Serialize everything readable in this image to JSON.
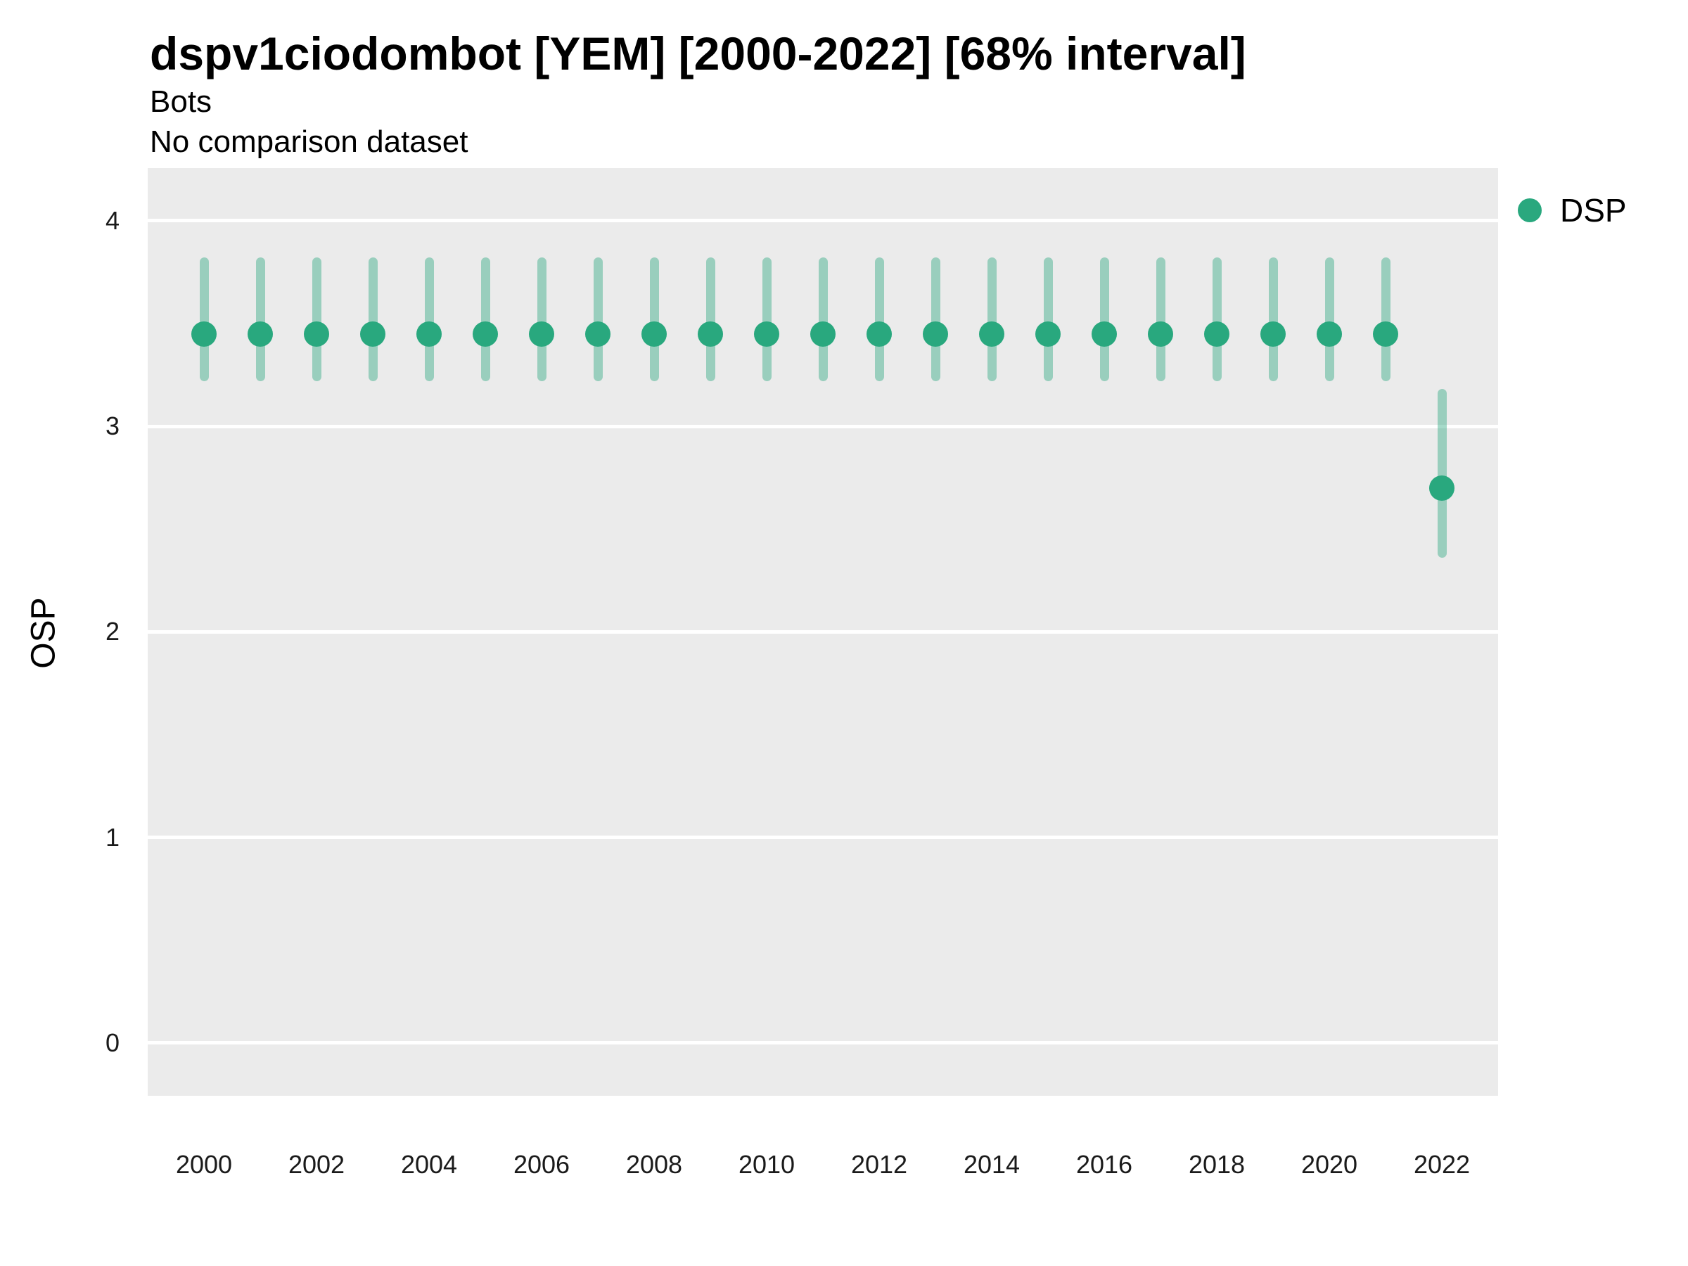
{
  "title": "dspv1ciodombot [YEM] [2000-2022] [68% interval]",
  "subtitle": "Bots",
  "subtitle2": "No comparison dataset",
  "legend": {
    "position": "right",
    "items": [
      {
        "label": "DSP",
        "color": "#2aa87e"
      }
    ]
  },
  "axes": {
    "y_label": "OSP",
    "y_ticks": [
      4,
      3,
      2,
      1,
      0
    ],
    "x_ticks": [
      2000,
      2002,
      2004,
      2006,
      2008,
      2010,
      2012,
      2014,
      2016,
      2018,
      2020,
      2022
    ]
  },
  "colors": {
    "point": "#29a87e",
    "point_ring": "rgba(41,168,126,0.6)",
    "interval_bar": "rgba(41,168,126,0.42)",
    "panel_bg": "#ebebeb",
    "gridline": "#ffffff"
  },
  "chart_data": {
    "type": "scatter",
    "subtype": "pointrange",
    "title": "dspv1ciodombot [YEM] [2000-2022] [68% interval]",
    "subtitle": "Bots",
    "note": "No comparison dataset",
    "interval": "68%",
    "xlabel": "",
    "ylabel": "OSP",
    "ylim": [
      -0.257,
      4.256
    ],
    "y_ticks": [
      0,
      1,
      2,
      3,
      4
    ],
    "grid": "horizontal-major-only",
    "legend_position": "right",
    "x": [
      2000,
      2001,
      2002,
      2003,
      2004,
      2005,
      2006,
      2007,
      2008,
      2009,
      2010,
      2011,
      2012,
      2013,
      2014,
      2015,
      2016,
      2017,
      2018,
      2019,
      2020,
      2021,
      2022
    ],
    "series": [
      {
        "name": "DSP",
        "mid": [
          3.45,
          3.45,
          3.45,
          3.45,
          3.45,
          3.45,
          3.45,
          3.45,
          3.45,
          3.45,
          3.45,
          3.45,
          3.45,
          3.45,
          3.45,
          3.45,
          3.45,
          3.45,
          3.45,
          3.45,
          3.45,
          3.45,
          2.7
        ],
        "lo": [
          3.22,
          3.22,
          3.22,
          3.22,
          3.22,
          3.22,
          3.22,
          3.22,
          3.22,
          3.22,
          3.22,
          3.22,
          3.22,
          3.22,
          3.22,
          3.22,
          3.22,
          3.22,
          3.22,
          3.22,
          3.22,
          3.22,
          2.36
        ],
        "hi": [
          3.82,
          3.82,
          3.82,
          3.82,
          3.82,
          3.82,
          3.82,
          3.82,
          3.82,
          3.82,
          3.82,
          3.82,
          3.82,
          3.82,
          3.82,
          3.82,
          3.82,
          3.82,
          3.82,
          3.82,
          3.82,
          3.82,
          3.18
        ]
      }
    ]
  }
}
